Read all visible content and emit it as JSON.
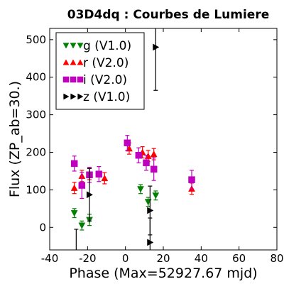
{
  "chart_data": {
    "type": "scatter",
    "title": "03D4dq : Courbes de Lumiere",
    "xlabel": "Phase (Max=52927.67 mjd)",
    "ylabel": "Flux (ZP_ab=30.)",
    "xlim": [
      -40,
      80
    ],
    "ylim": [
      -60,
      530
    ],
    "xticks": [
      -40,
      -20,
      0,
      20,
      40,
      60,
      80
    ],
    "xtick_labels": [
      "-40",
      "-20",
      "0",
      "20",
      "40",
      "60",
      "80"
    ],
    "yticks": [
      0,
      100,
      200,
      300,
      400,
      500
    ],
    "ytick_labels": [
      "0",
      "100",
      "200",
      "300",
      "400",
      "500"
    ],
    "grid": false,
    "legend_position": "top-left",
    "series": [
      {
        "name": "g (V1.0)",
        "color": "#008000",
        "marker": "triangle-down",
        "points": [
          {
            "x": -27,
            "y": 38,
            "err": 12
          },
          {
            "x": -23,
            "y": 5,
            "err": 12
          },
          {
            "x": -19,
            "y": 20,
            "err": 15
          },
          {
            "x": 8,
            "y": 102,
            "err": 12
          },
          {
            "x": 12,
            "y": 68,
            "err": 12
          },
          {
            "x": 16,
            "y": 85,
            "err": 12
          }
        ]
      },
      {
        "name": "r (V2.0)",
        "color": "#ff0000",
        "marker": "triangle-up",
        "points": [
          {
            "x": -27,
            "y": 105,
            "err": 15
          },
          {
            "x": -23,
            "y": 137,
            "err": 15
          },
          {
            "x": -19,
            "y": 142,
            "err": 15
          },
          {
            "x": -11,
            "y": 131,
            "err": 15
          },
          {
            "x": 2,
            "y": 210,
            "err": 15
          },
          {
            "x": 9,
            "y": 200,
            "err": 15
          },
          {
            "x": 12,
            "y": 190,
            "err": 15
          },
          {
            "x": 15,
            "y": 195,
            "err": 15
          },
          {
            "x": 35,
            "y": 103,
            "err": 15
          }
        ]
      },
      {
        "name": "i (V2.0)",
        "color": "#bf00bf",
        "marker": "square",
        "points": [
          {
            "x": -27,
            "y": 170,
            "err": 20
          },
          {
            "x": -23,
            "y": 112,
            "err": 35
          },
          {
            "x": -19,
            "y": 140,
            "err": 20
          },
          {
            "x": -14,
            "y": 142,
            "err": 20
          },
          {
            "x": 1,
            "y": 225,
            "err": 20
          },
          {
            "x": 7,
            "y": 192,
            "err": 20
          },
          {
            "x": 11,
            "y": 172,
            "err": 20
          },
          {
            "x": 15,
            "y": 155,
            "err": 30
          },
          {
            "x": 35,
            "y": 127,
            "err": 25
          }
        ]
      },
      {
        "name": "z (V1.0)",
        "color": "#000000",
        "marker": "triangle-right",
        "points": [
          {
            "x": -26,
            "y": -90,
            "err": 85
          },
          {
            "x": -19,
            "y": 87,
            "err": 70
          },
          {
            "x": 13,
            "y": 45,
            "err": 65
          },
          {
            "x": 13,
            "y": -40,
            "err": 65
          },
          {
            "x": 16,
            "y": 480,
            "err": 115
          }
        ]
      }
    ]
  }
}
